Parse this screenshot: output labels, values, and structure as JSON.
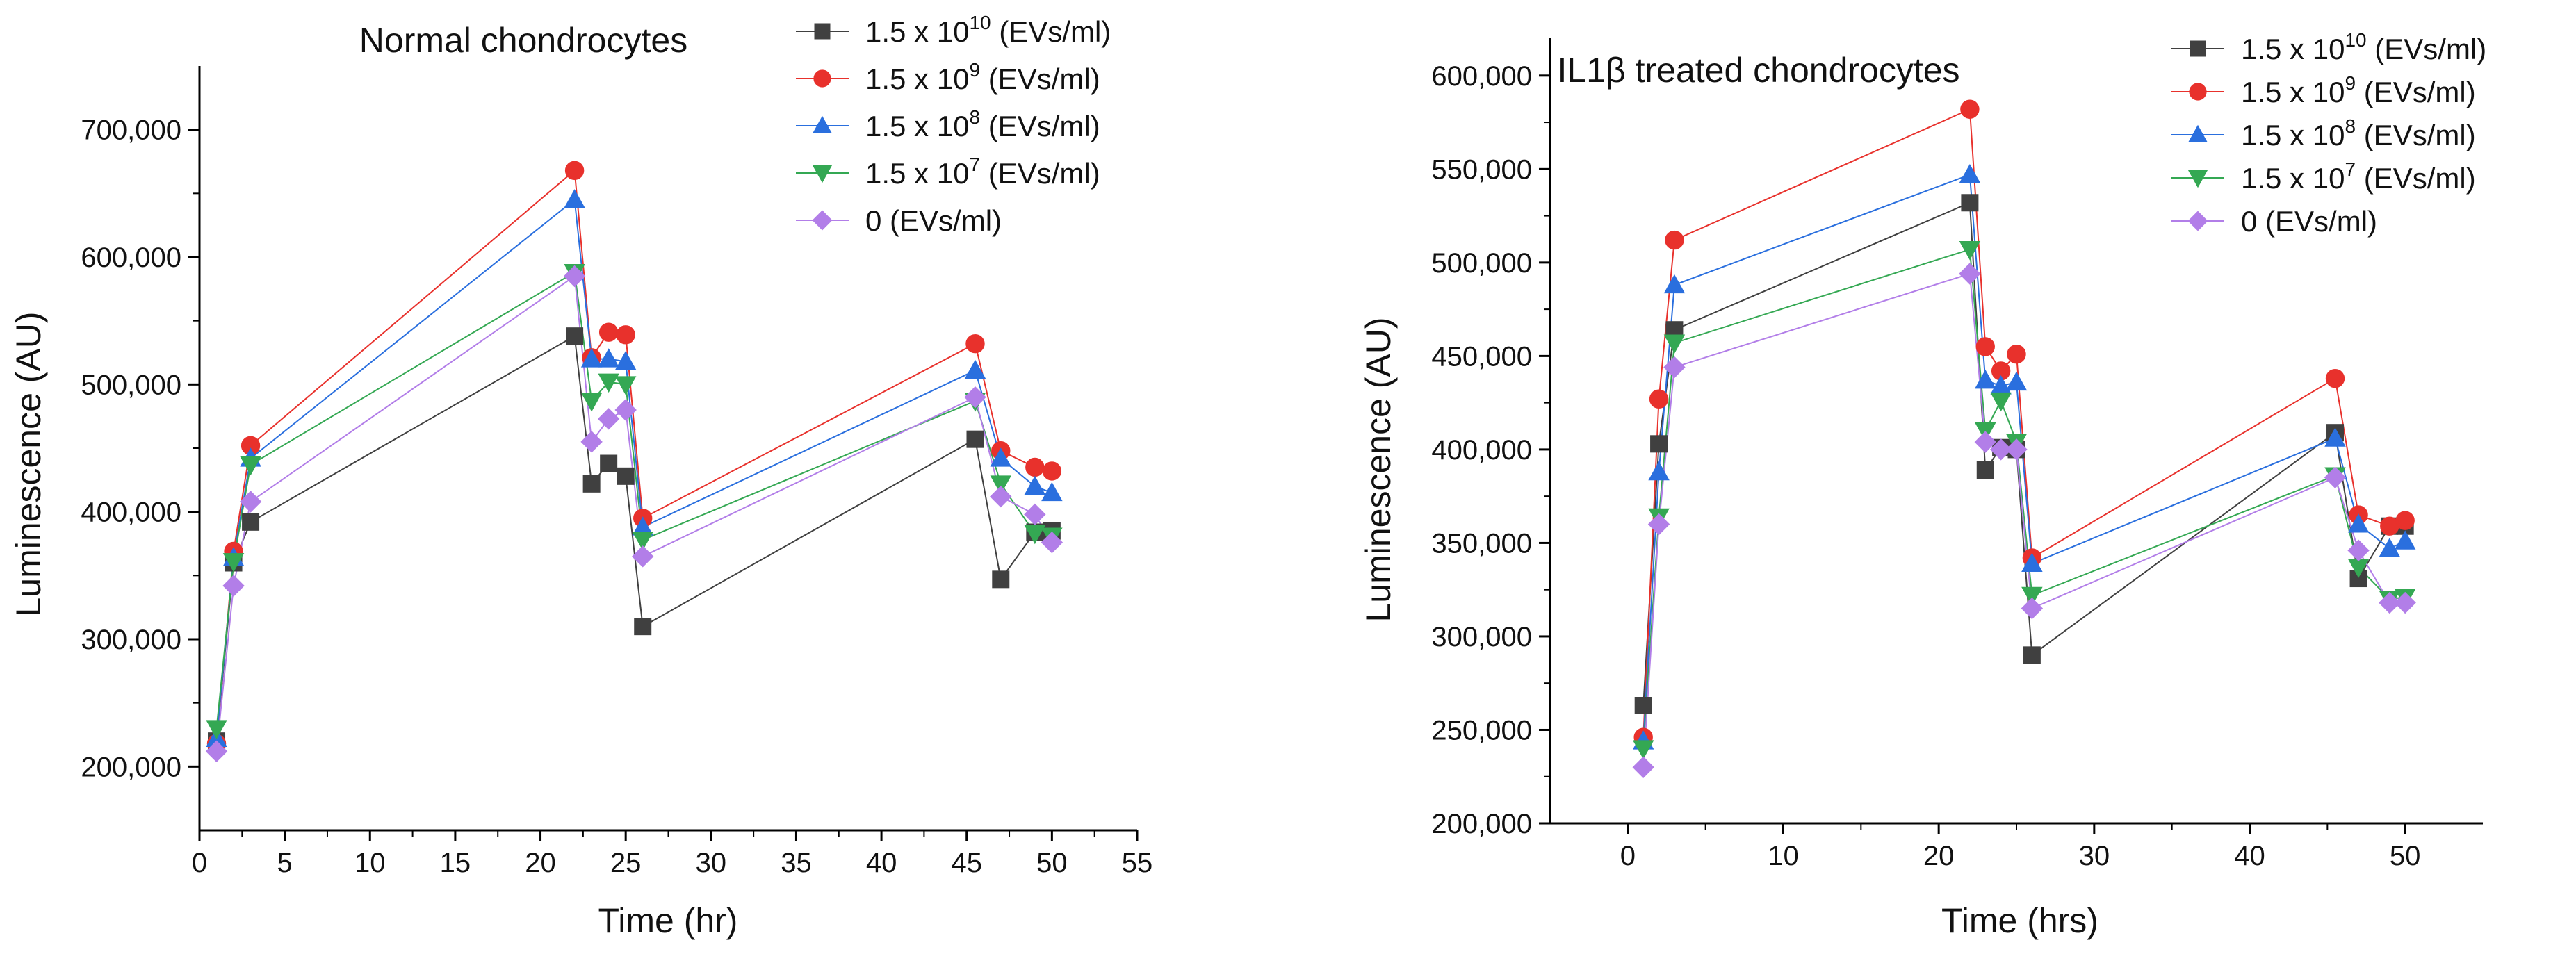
{
  "charts": [
    {
      "chart_data": {
        "type": "line",
        "title": "Normal chondrocytes",
        "xlabel": "Time (hr)",
        "ylabel": "Luminescence (AU)",
        "xlim": [
          0,
          55
        ],
        "ylim": [
          150000,
          750000
        ],
        "xticks": [
          0,
          5,
          10,
          15,
          20,
          25,
          30,
          35,
          40,
          45,
          50,
          55
        ],
        "yticks": [
          200000,
          300000,
          400000,
          500000,
          600000,
          700000
        ],
        "ytick_labels": [
          "200,000",
          "300,000",
          "400,000",
          "500,000",
          "600,000",
          "700,000"
        ],
        "x": [
          1,
          2,
          3,
          22,
          23,
          24,
          25,
          26,
          45.5,
          47,
          49,
          50
        ],
        "grid": false,
        "legend_placement": "top-right",
        "series": [
          {
            "name": "1.5 x 10^10 (EVs/ml)",
            "base": "1.5 x 10",
            "exp": "10",
            "unit": " (EVs/ml)",
            "color": "#404040",
            "marker": "square",
            "values": [
              220000,
              360000,
              392000,
              538000,
              422000,
              438000,
              428000,
              310000,
              457000,
              347000,
              384000,
              385000
            ]
          },
          {
            "name": "1.5 x 10^9 (EVs/ml)",
            "base": "1.5 x 10",
            "exp": "9",
            "unit": " (EVs/ml)",
            "color": "#e8312c",
            "marker": "circle",
            "values": [
              218000,
              369000,
              452000,
              668000,
              521000,
              541000,
              539000,
              395000,
              532000,
              448000,
              435000,
              432000
            ]
          },
          {
            "name": "1.5 x 10^8 (EVs/ml)",
            "base": "1.5 x 10",
            "exp": "8",
            "unit": " (EVs/ml)",
            "color": "#2a6fde",
            "marker": "triangle-up",
            "values": [
              222000,
              364000,
              442000,
              645000,
              520000,
              520000,
              518000,
              388000,
              511000,
              442000,
              420000,
              415000
            ]
          },
          {
            "name": "1.5 x 10^7 (EVs/ml)",
            "base": "1.5 x 10",
            "exp": "7",
            "unit": " (EVs/ml)",
            "color": "#34a853",
            "marker": "triangle-down",
            "values": [
              230000,
              361000,
              437000,
              588000,
              487000,
              502000,
              500000,
              378000,
              487000,
              422000,
              383000,
              381000
            ]
          },
          {
            "name": "0 (EVs/ml)",
            "base": "0",
            "exp": "",
            "unit": "  (EVs/ml)",
            "color": "#b27ee8",
            "marker": "diamond",
            "values": [
              212000,
              342000,
              408000,
              585000,
              455000,
              473000,
              480000,
              365000,
              490000,
              412000,
              398000,
              376000
            ]
          }
        ]
      }
    },
    {
      "chart_data": {
        "type": "line",
        "title": "IL1β treated chondrocytes",
        "xlabel": "Time (hrs)",
        "ylabel": "Luminescence (AU)",
        "xlim": [
          -5,
          55
        ],
        "ylim": [
          200000,
          620000
        ],
        "xticks": [
          0,
          10,
          20,
          30,
          40,
          50
        ],
        "yticks": [
          200000,
          250000,
          300000,
          350000,
          400000,
          450000,
          500000,
          550000,
          600000
        ],
        "ytick_labels": [
          "200,000",
          "250,000",
          "300,000",
          "350,000",
          "400,000",
          "450,000",
          "500,000",
          "550,000",
          "600,000"
        ],
        "x": [
          1,
          2,
          3,
          22,
          23,
          24,
          25,
          26,
          45.5,
          47,
          49,
          50
        ],
        "grid": false,
        "legend_placement": "top-right",
        "series": [
          {
            "name": "1.5 x 10^10 (EVs/ml)",
            "base": "1.5 x 10",
            "exp": "10",
            "unit": " (EVs/ml)",
            "color": "#404040",
            "marker": "square",
            "values": [
              263000,
              403000,
              464000,
              532000,
              389000,
              401000,
              400000,
              290000,
              409000,
              331000,
              359000,
              359000
            ]
          },
          {
            "name": "1.5 x 10^9 (EVs/ml)",
            "base": "1.5 x 10",
            "exp": "9",
            "unit": " (EVs/ml)",
            "color": "#e8312c",
            "marker": "circle",
            "values": [
              246000,
              427000,
              512000,
              582000,
              455000,
              442000,
              451000,
              342000,
              438000,
              365000,
              359000,
              362000
            ]
          },
          {
            "name": "1.5 x 10^8 (EVs/ml)",
            "base": "1.5 x 10",
            "exp": "8",
            "unit": " (EVs/ml)",
            "color": "#2a6fde",
            "marker": "triangle-up",
            "values": [
              244000,
              388000,
              488000,
              547000,
              437000,
              434000,
              436000,
              339000,
              406000,
              360000,
              347000,
              351000
            ]
          },
          {
            "name": "1.5 x 10^7 (EVs/ml)",
            "base": "1.5 x 10",
            "exp": "7",
            "unit": " (EVs/ml)",
            "color": "#34a853",
            "marker": "triangle-down",
            "values": [
              240000,
              364000,
              457000,
              507000,
              410000,
              426000,
              404000,
              322000,
              386000,
              337000,
              320000,
              321000
            ]
          },
          {
            "name": "0 (EVs/ml)",
            "base": "0",
            "exp": "",
            "unit": "  (EVs/ml)",
            "color": "#b27ee8",
            "marker": "diamond",
            "values": [
              230000,
              360000,
              444000,
              494000,
              404000,
              400000,
              400000,
              315000,
              385000,
              346000,
              318000,
              318000
            ]
          }
        ]
      }
    }
  ]
}
